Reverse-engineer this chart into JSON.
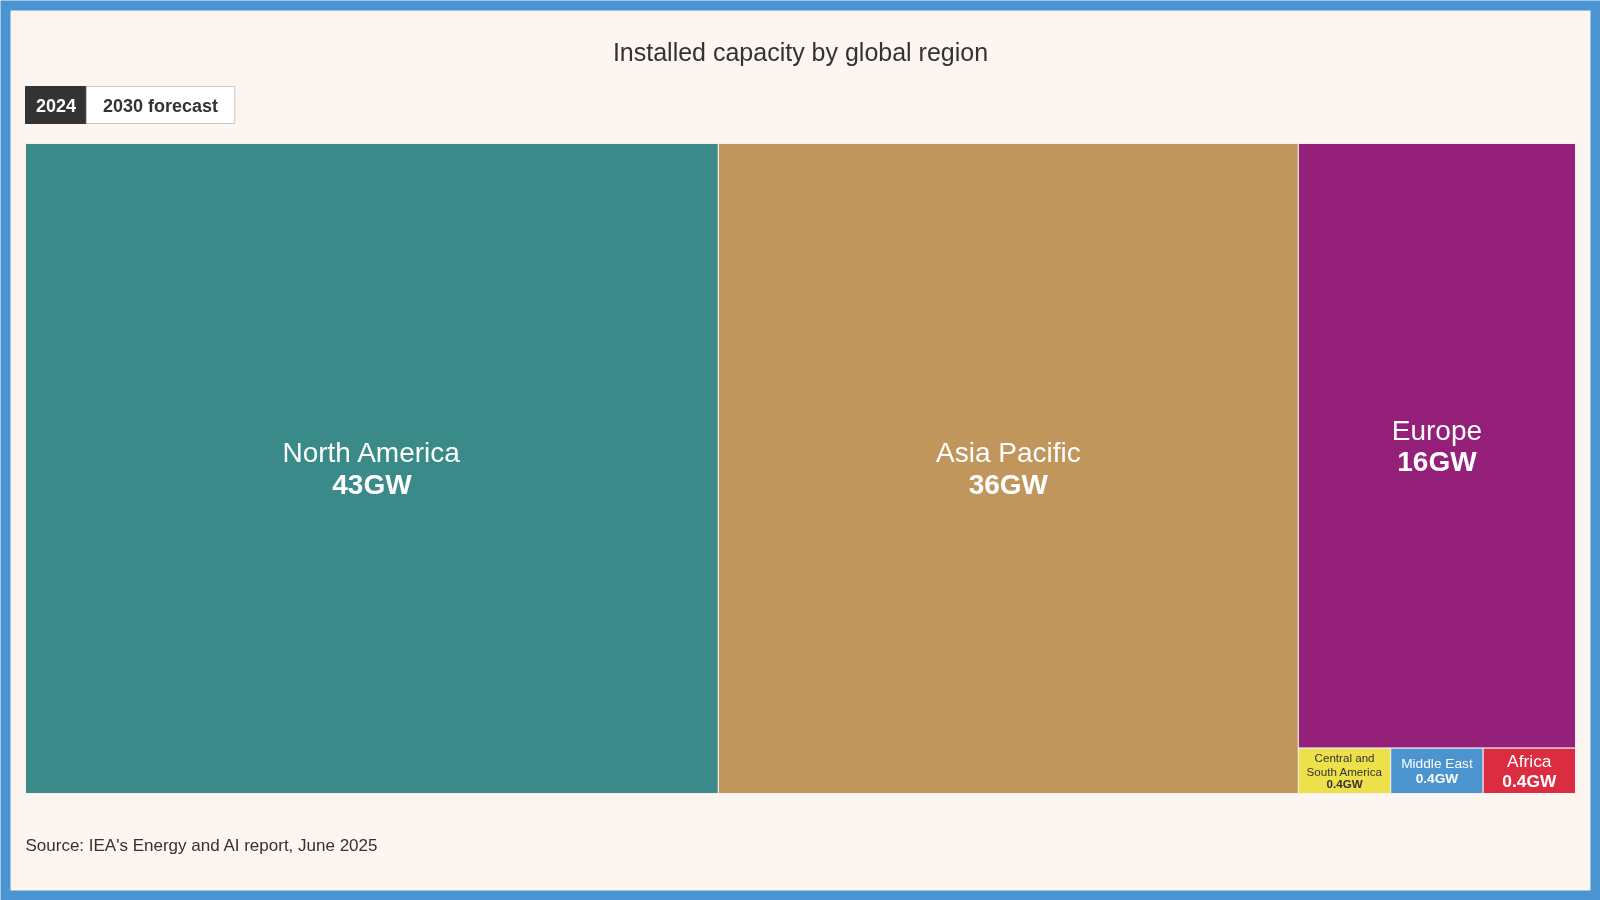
{
  "chart_data": {
    "type": "other",
    "title": "Installed capacity by global region",
    "categories": [
      "North America",
      "Asia Pacific",
      "Europe",
      "Central and South America",
      "Middle East",
      "Africa"
    ],
    "values": [
      43,
      36,
      16,
      0.4,
      0.4,
      0.4
    ],
    "value_labels": [
      "43GW",
      "36GW",
      "16GW",
      "0.4GW",
      "0.4GW",
      "0.4GW"
    ],
    "colors": [
      "#3a8a8a",
      "#c0965c",
      "#942079",
      "#ede04a",
      "#4b94d0",
      "#dc2d40"
    ],
    "annotations": [
      "2024",
      "2030 forecast",
      "Source: IEA's Energy and AI report, June 2025"
    ]
  }
}
